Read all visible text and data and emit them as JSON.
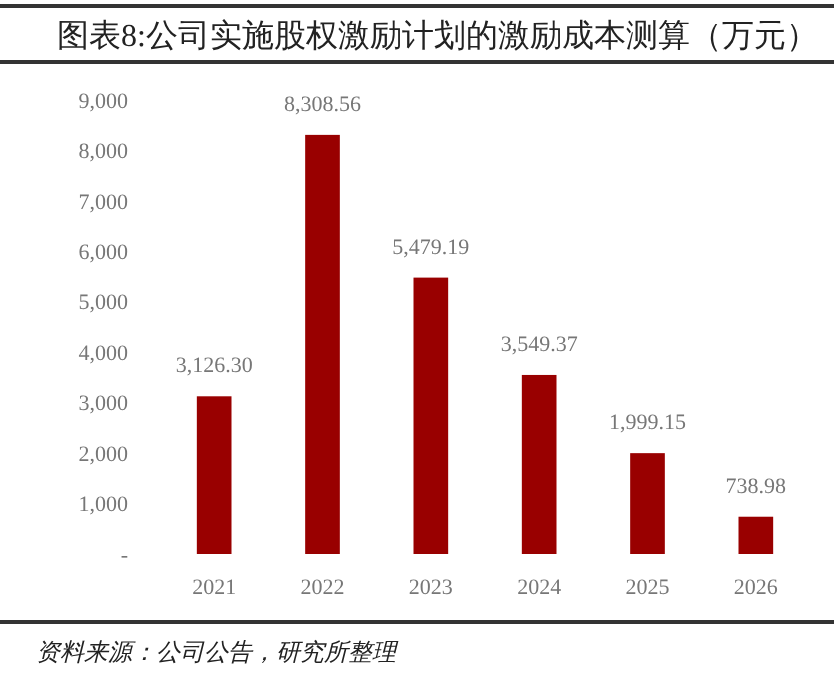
{
  "chart_data": {
    "type": "bar",
    "title": "图表8:公司实施股权激励计划的激励成本测算（万元）",
    "categories": [
      "2021",
      "2022",
      "2023",
      "2024",
      "2025",
      "2026"
    ],
    "values": [
      3126.3,
      8308.56,
      5479.19,
      3549.37,
      1999.15,
      738.98
    ],
    "value_labels": [
      "3,126.30",
      "8,308.56",
      "5,479.19",
      "3,549.37",
      "1,999.15",
      "738.98"
    ],
    "color": "#990000",
    "ylim": [
      0,
      9000
    ],
    "yticks": [
      {
        "value": 0,
        "label": "-"
      },
      {
        "value": 1000,
        "label": "1,000"
      },
      {
        "value": 2000,
        "label": "2,000"
      },
      {
        "value": 3000,
        "label": "3,000"
      },
      {
        "value": 4000,
        "label": "4,000"
      },
      {
        "value": 5000,
        "label": "5,000"
      },
      {
        "value": 6000,
        "label": "6,000"
      },
      {
        "value": 7000,
        "label": "7,000"
      },
      {
        "value": 8000,
        "label": "8,000"
      },
      {
        "value": 9000,
        "label": "9,000"
      }
    ],
    "grid": false,
    "annotations": [
      "资料来源：公司公告，研究所整理"
    ]
  }
}
